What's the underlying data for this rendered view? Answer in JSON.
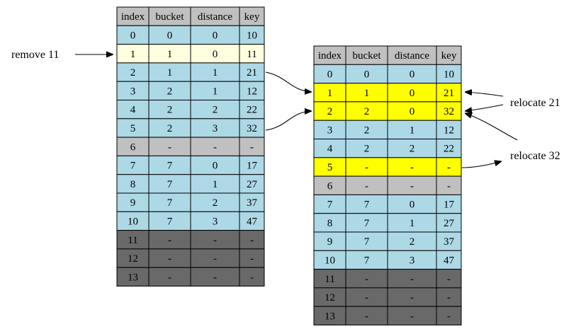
{
  "colors": {
    "header": "#c0c0c0",
    "normal": "#add8e6",
    "removed": "#ffffe0",
    "relocated": "#ffff00",
    "empty": "#c0c0c0",
    "overflow": "#696969"
  },
  "columns": [
    "index",
    "bucket",
    "distance",
    "key"
  ],
  "before_table": {
    "rows": [
      {
        "cells": [
          "0",
          "0",
          "0",
          "10"
        ],
        "state": "normal"
      },
      {
        "cells": [
          "1",
          "1",
          "0",
          "11"
        ],
        "state": "removed"
      },
      {
        "cells": [
          "2",
          "1",
          "1",
          "21"
        ],
        "state": "normal"
      },
      {
        "cells": [
          "3",
          "2",
          "1",
          "12"
        ],
        "state": "normal"
      },
      {
        "cells": [
          "4",
          "2",
          "2",
          "22"
        ],
        "state": "normal"
      },
      {
        "cells": [
          "5",
          "2",
          "3",
          "32"
        ],
        "state": "normal"
      },
      {
        "cells": [
          "6",
          "-",
          "-",
          "-"
        ],
        "state": "empty"
      },
      {
        "cells": [
          "7",
          "7",
          "0",
          "17"
        ],
        "state": "normal"
      },
      {
        "cells": [
          "8",
          "7",
          "1",
          "27"
        ],
        "state": "normal"
      },
      {
        "cells": [
          "9",
          "7",
          "2",
          "37"
        ],
        "state": "normal"
      },
      {
        "cells": [
          "10",
          "7",
          "3",
          "47"
        ],
        "state": "normal"
      },
      {
        "cells": [
          "11",
          "-",
          "-",
          "-"
        ],
        "state": "overflow"
      },
      {
        "cells": [
          "12",
          "-",
          "-",
          "-"
        ],
        "state": "overflow"
      },
      {
        "cells": [
          "13",
          "-",
          "-",
          "-"
        ],
        "state": "overflow"
      }
    ]
  },
  "after_table": {
    "rows": [
      {
        "cells": [
          "0",
          "0",
          "0",
          "10"
        ],
        "state": "normal"
      },
      {
        "cells": [
          "1",
          "1",
          "0",
          "21"
        ],
        "state": "relocated"
      },
      {
        "cells": [
          "2",
          "2",
          "0",
          "32"
        ],
        "state": "relocated"
      },
      {
        "cells": [
          "3",
          "2",
          "1",
          "12"
        ],
        "state": "normal"
      },
      {
        "cells": [
          "4",
          "2",
          "2",
          "22"
        ],
        "state": "normal"
      },
      {
        "cells": [
          "5",
          "-",
          "-",
          "-"
        ],
        "state": "relocated"
      },
      {
        "cells": [
          "6",
          "-",
          "-",
          "-"
        ],
        "state": "empty"
      },
      {
        "cells": [
          "7",
          "7",
          "0",
          "17"
        ],
        "state": "normal"
      },
      {
        "cells": [
          "8",
          "7",
          "1",
          "27"
        ],
        "state": "normal"
      },
      {
        "cells": [
          "9",
          "7",
          "2",
          "37"
        ],
        "state": "normal"
      },
      {
        "cells": [
          "10",
          "7",
          "3",
          "47"
        ],
        "state": "normal"
      },
      {
        "cells": [
          "11",
          "-",
          "-",
          "-"
        ],
        "state": "overflow"
      },
      {
        "cells": [
          "12",
          "-",
          "-",
          "-"
        ],
        "state": "overflow"
      },
      {
        "cells": [
          "13",
          "-",
          "-",
          "-"
        ],
        "state": "overflow"
      }
    ]
  },
  "labels": {
    "remove": "remove 11",
    "relocate_21": "relocate 21",
    "relocate_32": "relocate 32"
  }
}
